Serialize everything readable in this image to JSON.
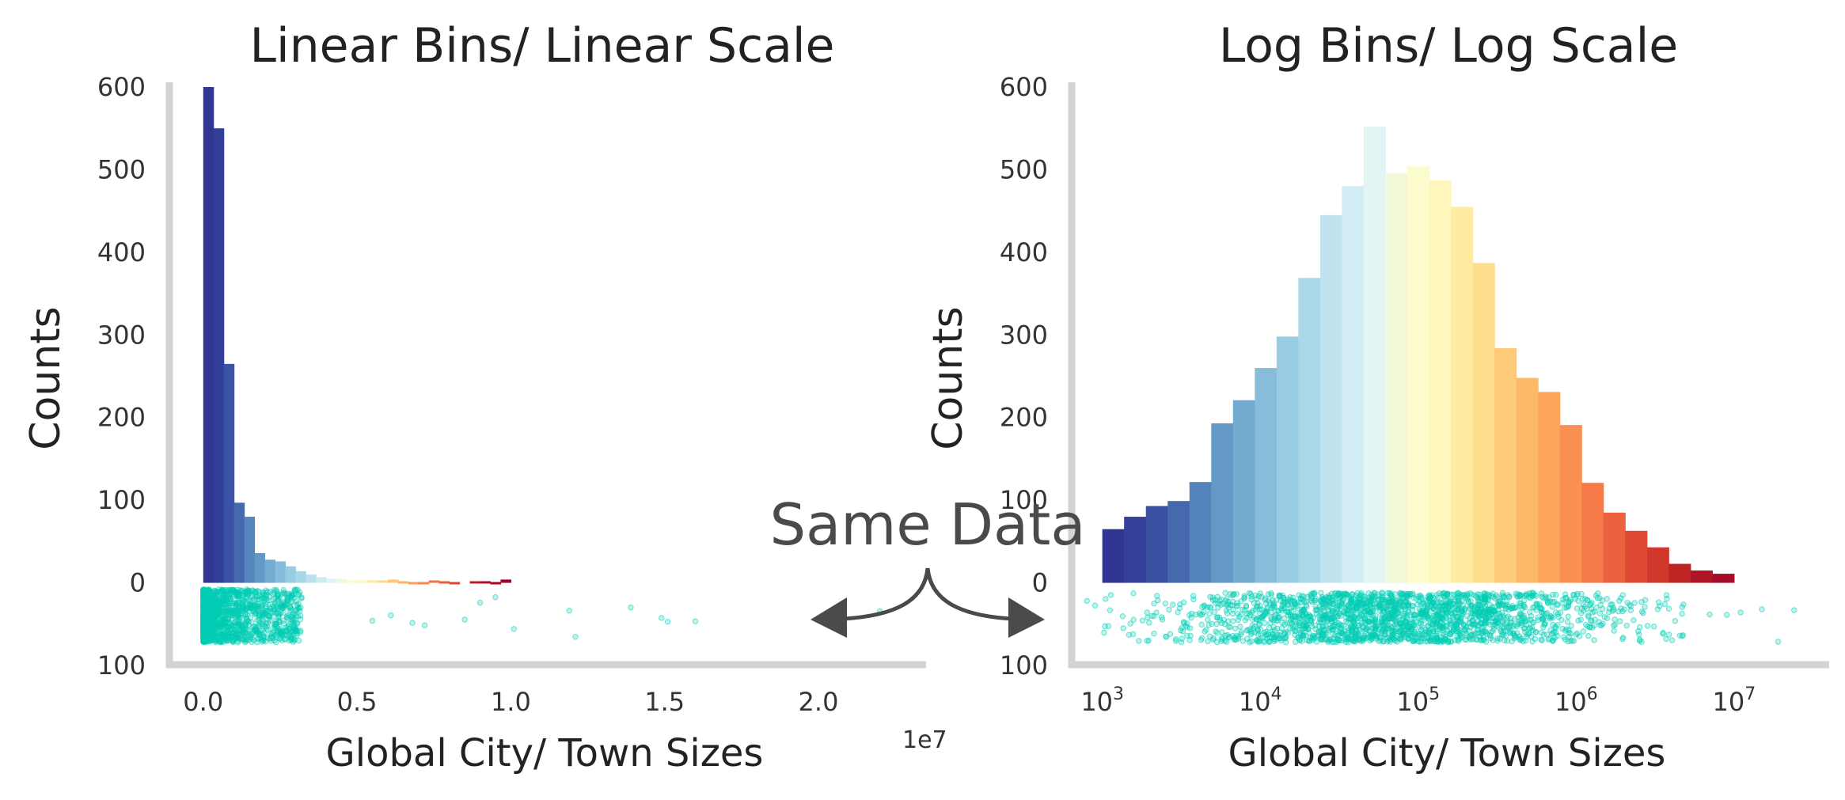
{
  "annotation": {
    "text": "Same Data",
    "color": "#4a4a4a"
  },
  "strip_color": "#00cdb5",
  "chart_data": [
    {
      "type": "bar",
      "title": "Linear Bins/ Linear Scale",
      "xlabel": "Global City/ Town Sizes",
      "ylabel": "Counts",
      "x_scale": "linear",
      "x_offset_label": "1e7",
      "xlim": [
        -1100000,
        23500000
      ],
      "ylim": [
        0,
        600
      ],
      "y_display_lower": -100,
      "y_ticks": [
        {
          "value": 600,
          "label": "600"
        },
        {
          "value": 500,
          "label": "500"
        },
        {
          "value": 400,
          "label": "400"
        },
        {
          "value": 300,
          "label": "300"
        },
        {
          "value": 200,
          "label": "200"
        },
        {
          "value": 100,
          "label": "100"
        },
        {
          "value": 0,
          "label": "0"
        },
        {
          "value": -100,
          "label": "100"
        }
      ],
      "x_ticks": [
        {
          "value": 0,
          "label": "0.0"
        },
        {
          "value": 5000000,
          "label": "0.5"
        },
        {
          "value": 10000000,
          "label": "1.0"
        },
        {
          "value": 15000000,
          "label": "1.5"
        },
        {
          "value": 20000000,
          "label": "2.0"
        }
      ],
      "bin_edges": [
        0,
        333333,
        666667,
        1000000,
        1333333,
        1666667,
        2000000,
        2333333,
        2666667,
        3000000,
        3333333,
        3666667,
        4000000,
        4333333,
        4666667,
        5000000,
        5333333,
        5666667,
        6000000,
        6333333,
        6666667,
        7000000,
        7333333,
        7666667,
        8000000,
        8333333,
        8666667,
        9000000,
        9333333,
        9666667,
        10000000
      ],
      "counts": [
        600,
        550,
        265,
        97,
        80,
        36,
        28,
        26,
        20,
        14,
        10,
        7,
        5,
        5,
        3,
        3,
        3,
        3,
        4,
        2,
        1,
        1,
        3,
        2,
        1,
        0,
        2,
        2,
        1,
        4
      ],
      "colors": [
        "#313695",
        "#333e98",
        "#3b53a4",
        "#4669ad",
        "#5485bc",
        "#6399c6",
        "#74acd1",
        "#86bcdb",
        "#98cce2",
        "#aad7e8",
        "#bce1ee",
        "#cdebf3",
        "#def2f7",
        "#eef8e4",
        "#fbfbcc",
        "#fef7bb",
        "#fee9a0",
        "#fedb89",
        "#fdc877",
        "#fdb466",
        "#fc9f5a",
        "#f98a4e",
        "#f37547",
        "#ea5d3b",
        "#dd4632",
        "#cd3228",
        "#bc2027",
        "#ac1127",
        "#a50726",
        "#a50026"
      ],
      "strip": {
        "y_band": [
          -8,
          -72
        ],
        "x_max_dense": 3200000,
        "outliers": [
          5500000,
          6100000,
          6800000,
          7200000,
          8500000,
          9000000,
          9500000,
          10100000,
          11900000,
          12100000,
          13900000,
          14900000,
          15100000,
          16000000,
          22000000
        ]
      }
    },
    {
      "type": "bar",
      "title": "Log Bins/ Log Scale",
      "xlabel": "Global City/ Town Sizes",
      "ylabel": "Counts",
      "x_scale": "log",
      "xlim": [
        640,
        40000000
      ],
      "ylim": [
        0,
        600
      ],
      "y_display_lower": -100,
      "y_ticks": [
        {
          "value": 600,
          "label": "600"
        },
        {
          "value": 500,
          "label": "500"
        },
        {
          "value": 400,
          "label": "400"
        },
        {
          "value": 300,
          "label": "300"
        },
        {
          "value": 200,
          "label": "200"
        },
        {
          "value": 100,
          "label": "100"
        },
        {
          "value": 0,
          "label": "0"
        },
        {
          "value": -100,
          "label": "100"
        }
      ],
      "x_ticks": [
        {
          "value": 1000,
          "base": "10",
          "exp": "3"
        },
        {
          "value": 10000,
          "base": "10",
          "exp": "4"
        },
        {
          "value": 100000,
          "base": "10",
          "exp": "5"
        },
        {
          "value": 1000000,
          "base": "10",
          "exp": "6"
        },
        {
          "value": 10000000,
          "base": "10",
          "exp": "7"
        }
      ],
      "bin_log_range": [
        3,
        7
      ],
      "counts": [
        65,
        80,
        93,
        99,
        122,
        193,
        221,
        260,
        298,
        369,
        445,
        480,
        552,
        496,
        504,
        487,
        455,
        387,
        284,
        248,
        231,
        191,
        121,
        85,
        63,
        43,
        23,
        15,
        11
      ],
      "colors": [
        "#313695",
        "#34409a",
        "#3b52a3",
        "#4668ad",
        "#5383bb",
        "#6398c7",
        "#73abd0",
        "#87bddb",
        "#98cce2",
        "#aad8e9",
        "#c0e3ef",
        "#d2edf4",
        "#e2f4f4",
        "#f1f9d8",
        "#fcfbcd",
        "#fef6bb",
        "#feeba2",
        "#fedd8c",
        "#fecb79",
        "#fdb868",
        "#fca55c",
        "#fa9152",
        "#f57a48",
        "#ec6140",
        "#e04a34",
        "#d0382b",
        "#c02526",
        "#b01527",
        "#a70b27"
      ],
      "strip": {
        "y_band": [
          -12,
          -72
        ],
        "x_min": 1000,
        "x_max_dense": 6000000,
        "outliers": [
          800,
          900,
          7000000,
          9000000,
          11000000,
          15000000,
          19000000,
          24000000
        ]
      }
    }
  ]
}
